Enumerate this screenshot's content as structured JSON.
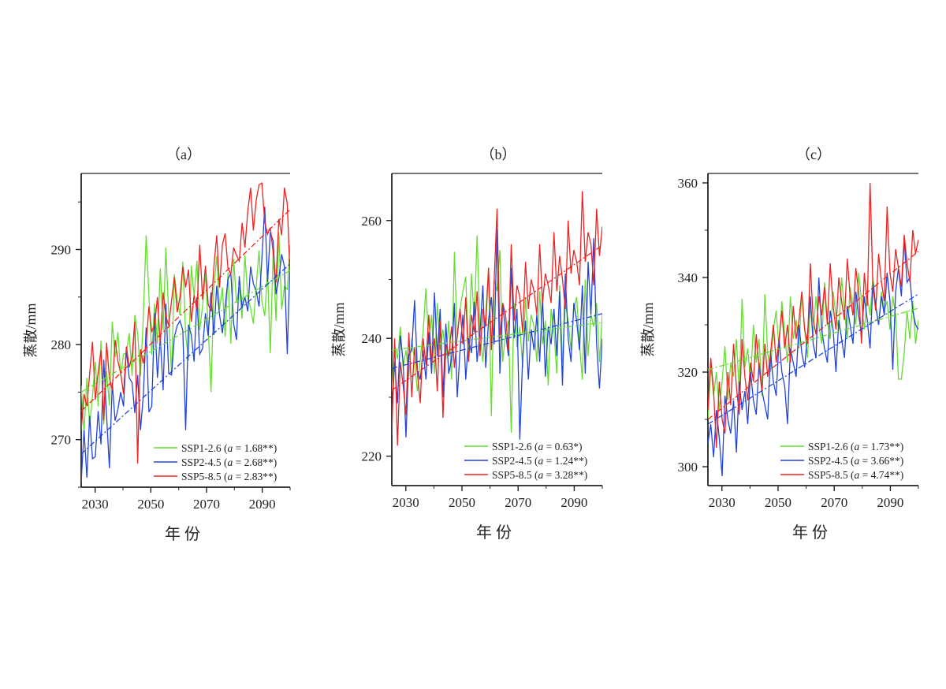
{
  "figure": {
    "xlabel": "年 份",
    "ylabel": "蒸散/mm"
  },
  "chart_data": [
    {
      "type": "line",
      "panel": "(a)",
      "title": "（a）",
      "xlabel": "年 份",
      "ylabel": "蒸散/mm",
      "xlim": [
        2025,
        2100
      ],
      "ylim": [
        265,
        298
      ],
      "xticks": [
        2030,
        2050,
        2070,
        2090
      ],
      "xtick_labels": [
        "2030",
        "2050",
        "2070",
        "2090"
      ],
      "yticks": [
        270,
        280,
        290
      ],
      "ytick_labels": [
        "270",
        "280",
        "290"
      ],
      "legend_position": "bottom-right",
      "series": [
        {
          "name": "SSP1-2.6",
          "color": "#66dd33",
          "legend_label": "SSP1-2.6 (a = 1.68**)",
          "label_prefix": "SSP1-2.6 (",
          "coef_symbol": "a",
          "coef_rest": " = 1.68**)",
          "slope_per_decade": 1.68,
          "trend": [
            275.0,
            287.8
          ],
          "values": [
            275.7,
            270.7,
            276.5,
            271.4,
            274.6,
            278.2,
            273.5,
            280.4,
            271.6,
            277.2,
            273.6,
            282.4,
            278.7,
            281.3,
            276.7,
            279.0,
            279.1,
            281.2,
            276.7,
            283.1,
            281.2,
            276.7,
            282.9,
            291.5,
            285.2,
            278.9,
            284.3,
            280.1,
            288.0,
            281.5,
            290.2,
            283.0,
            276.9,
            287.4,
            284.7,
            283.1,
            288.7,
            281.1,
            278.3,
            288.3,
            285.1,
            288.8,
            281.5,
            284.1,
            287.5,
            281.8,
            275.0,
            286.0,
            289.3,
            283.7,
            286.0,
            280.8,
            287.6,
            280.1,
            289.0,
            284.4,
            286.1,
            282.7,
            289.4,
            285.0,
            283.8,
            282.2,
            286.1,
            289.9,
            284.6,
            283.0,
            287.7,
            279.1,
            289.8,
            282.5,
            291.8,
            283.7,
            286.1,
            285.8,
            290.5
          ]
        },
        {
          "name": "SSP2-4.5",
          "color": "#2244dd",
          "legend_label": "SSP2-4.5 (a = 2.68**)",
          "label_prefix": "SSP2-4.5 (",
          "coef_symbol": "a",
          "coef_rest": " = 2.68**)",
          "slope_per_decade": 2.68,
          "trend": [
            268.5,
            288.5
          ],
          "values": [
            265.5,
            271.0,
            266.0,
            272.5,
            268.0,
            268.2,
            273.0,
            269.5,
            278.4,
            272.5,
            267.0,
            276.0,
            272.0,
            273.2,
            275.0,
            273.5,
            279.5,
            276.5,
            276.0,
            272.8,
            276.8,
            271.0,
            274.6,
            281.8,
            272.9,
            273.5,
            283.3,
            276.5,
            280.8,
            275.2,
            284.3,
            277.0,
            276.8,
            280.8,
            282.0,
            282.5,
            281.5,
            271.0,
            282.1,
            281.0,
            278.2,
            285.0,
            279.0,
            279.6,
            283.3,
            280.9,
            285.5,
            281.0,
            286.2,
            283.1,
            281.2,
            284.0,
            286.9,
            287.5,
            282.2,
            280.5,
            287.2,
            283.9,
            285.0,
            283.5,
            288.2,
            286.4,
            285.6,
            284.0,
            289.0,
            294.5,
            286.6,
            291.8,
            290.9,
            285.3,
            287.0,
            289.5,
            288.2,
            279.0,
            289.0
          ]
        },
        {
          "name": "SSP5-8.5",
          "color": "#ee2222",
          "legend_label": "SSP5-8.5 (a = 2.83**)",
          "label_prefix": "SSP5-8.5 (",
          "coef_symbol": "a",
          "coef_rest": " = 2.83**)",
          "slope_per_decade": 2.83,
          "trend": [
            273.0,
            294.2
          ],
          "values": [
            271.0,
            274.8,
            273.5,
            276.9,
            280.3,
            274.2,
            277.1,
            279.4,
            272.0,
            280.2,
            276.5,
            275.2,
            280.5,
            278.2,
            277.0,
            274.8,
            279.8,
            277.6,
            278.8,
            282.4,
            267.5,
            279.5,
            278.0,
            280.0,
            284.0,
            281.4,
            282.0,
            285.0,
            280.0,
            285.5,
            283.0,
            282.0,
            284.6,
            287.1,
            283.4,
            285.0,
            288.2,
            286.0,
            287.9,
            282.4,
            285.2,
            283.6,
            290.5,
            284.7,
            288.3,
            284.2,
            283.5,
            288.2,
            291.5,
            286.0,
            290.5,
            291.7,
            288.0,
            287.4,
            290.2,
            289.4,
            288.8,
            292.8,
            290.2,
            294.0,
            296.5,
            292.0,
            295.2,
            296.8,
            297.0,
            292.9,
            291.6,
            292.3,
            289.7,
            286.5,
            293.2,
            291.5,
            296.5,
            294.8,
            287.0
          ]
        }
      ]
    },
    {
      "type": "line",
      "panel": "(b)",
      "title": "（b）",
      "xlabel": "年 份",
      "ylabel": "蒸散/mm",
      "xlim": [
        2025,
        2100
      ],
      "ylim": [
        215,
        268
      ],
      "xticks": [
        2030,
        2050,
        2070,
        2090
      ],
      "xtick_labels": [
        "2030",
        "2050",
        "2070",
        "2090"
      ],
      "yticks": [
        220,
        240,
        260
      ],
      "ytick_labels": [
        "220",
        "240",
        "260"
      ],
      "legend_position": "bottom-right",
      "series": [
        {
          "name": "SSP1-2.6",
          "color": "#66dd33",
          "legend_label": "SSP1-2.6 (a = 0.63*)",
          "label_prefix": "SSP1-2.6 (",
          "coef_symbol": "a",
          "coef_rest": " = 0.63*)",
          "slope_per_decade": 0.63,
          "trend": [
            238.0,
            242.7
          ],
          "values": [
            231.0,
            239.0,
            236.5,
            242.0,
            235.0,
            238.0,
            233.5,
            240.0,
            236.0,
            231.0,
            236.5,
            241.0,
            248.5,
            239.0,
            244.0,
            234.0,
            246.0,
            238.0,
            241.5,
            236.5,
            243.0,
            233.0,
            254.7,
            240.0,
            245.0,
            248.0,
            250.5,
            237.0,
            251.0,
            243.0,
            257.5,
            241.0,
            236.0,
            244.0,
            252.0,
            226.8,
            250.0,
            248.0,
            255.0,
            236.0,
            241.0,
            243.0,
            224.0,
            246.0,
            238.5,
            242.0,
            235.0,
            247.0,
            239.5,
            244.0,
            242.0,
            236.0,
            248.0,
            239.0,
            243.0,
            232.0,
            245.0,
            241.0,
            234.0,
            249.0,
            236.0,
            246.0,
            243.0,
            238.0,
            245.0,
            247.0,
            239.0,
            233.0,
            250.0,
            237.0,
            244.0,
            242.0,
            246.0,
            236.0,
            244.0
          ]
        },
        {
          "name": "SSP2-4.5",
          "color": "#2244dd",
          "legend_label": "SSP2-4.5 (a = 1.24**)",
          "label_prefix": "SSP2-4.5 (",
          "coef_symbol": "a",
          "coef_rest": " = 1.24**)",
          "slope_per_decade": 1.24,
          "trend": [
            234.9,
            244.2
          ],
          "values": [
            226.5,
            236.0,
            229.0,
            240.5,
            236.0,
            223.2,
            237.2,
            238.0,
            246.5,
            234.5,
            233.0,
            238.0,
            233.0,
            241.0,
            234.0,
            247.8,
            237.0,
            245.0,
            230.0,
            242.5,
            234.0,
            236.5,
            246.0,
            230.0,
            238.0,
            244.0,
            233.0,
            240.0,
            237.5,
            246.2,
            236.0,
            241.0,
            249.0,
            235.0,
            243.0,
            247.0,
            239.0,
            258.5,
            234.0,
            246.0,
            241.0,
            237.0,
            252.0,
            240.0,
            245.0,
            222.8,
            237.0,
            243.0,
            233.0,
            241.5,
            238.0,
            244.0,
            236.0,
            247.0,
            233.5,
            242.0,
            239.0,
            245.0,
            237.0,
            248.0,
            232.0,
            251.0,
            240.0,
            236.0,
            246.0,
            243.0,
            238.0,
            249.0,
            234.0,
            253.0,
            244.0,
            257.0,
            239.0,
            231.5,
            240.0
          ]
        },
        {
          "name": "SSP5-8.5",
          "color": "#ee2222",
          "legend_label": "SSP5-8.5 (a = 3.28**)",
          "label_prefix": "SSP5-8.5 (",
          "coef_symbol": "a",
          "coef_rest": " = 3.28**)",
          "slope_per_decade": 3.28,
          "trend": [
            231.2,
            255.8
          ],
          "values": [
            223.5,
            240.0,
            221.8,
            236.0,
            232.0,
            227.0,
            241.0,
            230.0,
            238.5,
            234.0,
            229.0,
            240.0,
            235.5,
            244.0,
            236.0,
            240.0,
            231.0,
            243.0,
            226.5,
            239.0,
            237.0,
            242.0,
            235.0,
            240.5,
            245.0,
            239.0,
            247.0,
            236.0,
            244.0,
            241.0,
            248.0,
            237.0,
            245.0,
            242.0,
            252.0,
            238.0,
            250.0,
            262.0,
            240.0,
            246.0,
            244.0,
            238.0,
            256.0,
            243.0,
            249.0,
            247.0,
            241.0,
            253.0,
            245.0,
            250.0,
            248.0,
            244.0,
            256.0,
            246.0,
            251.0,
            249.0,
            246.0,
            258.0,
            248.0,
            254.0,
            250.0,
            245.0,
            260.0,
            251.0,
            255.0,
            253.0,
            249.0,
            265.0,
            253.0,
            258.0,
            256.0,
            249.0,
            262.0,
            254.0,
            259.0
          ]
        }
      ]
    },
    {
      "type": "line",
      "panel": "(c)",
      "title": "（c）",
      "xlabel": "年 份",
      "ylabel": "蒸散/mm",
      "xlim": [
        2025,
        2100
      ],
      "ylim": [
        296,
        362
      ],
      "xticks": [
        2030,
        2050,
        2070,
        2090
      ],
      "xtick_labels": [
        "2030",
        "2050",
        "2070",
        "2090"
      ],
      "yticks": [
        300,
        320,
        340,
        360
      ],
      "ytick_labels": [
        "300",
        "320",
        "340",
        "360"
      ],
      "legend_position": "bottom-right",
      "series": [
        {
          "name": "SSP1-2.6",
          "color": "#66dd33",
          "legend_label": "SSP1-2.6 (a = 1.73**)",
          "label_prefix": "SSP1-2.6 (",
          "coef_symbol": "a",
          "coef_rest": " = 1.73**)",
          "slope_per_decade": 1.73,
          "trend": [
            320.5,
            333.5
          ],
          "values": [
            310.0,
            321.5,
            315.0,
            320.0,
            312.0,
            318.0,
            325.5,
            314.0,
            322.0,
            319.0,
            327.0,
            316.0,
            335.5,
            321.0,
            325.0,
            318.0,
            330.0,
            322.0,
            327.0,
            315.0,
            336.5,
            324.0,
            320.0,
            329.0,
            333.0,
            325.0,
            335.0,
            328.0,
            322.0,
            336.0,
            327.0,
            331.0,
            325.0,
            337.0,
            329.0,
            323.0,
            334.0,
            328.0,
            336.0,
            330.0,
            326.0,
            339.0,
            331.0,
            327.0,
            337.0,
            332.0,
            329.0,
            340.0,
            333.0,
            327.0,
            338.0,
            334.0,
            330.0,
            341.0,
            335.0,
            329.0,
            336.0,
            332.0,
            340.0,
            334.0,
            330.0,
            337.0,
            333.0,
            335.0,
            329.0,
            336.0,
            332.0,
            318.5,
            318.5,
            324.0,
            333.0,
            327.0,
            335.0,
            326.0,
            331.0
          ]
        },
        {
          "name": "SSP2-4.5",
          "color": "#2244dd",
          "legend_label": "SSP2-4.5 (a = 3.66**)",
          "label_prefix": "SSP2-4.5 (",
          "coef_symbol": "a",
          "coef_rest": " = 3.66**)",
          "slope_per_decade": 3.66,
          "trend": [
            309.0,
            336.5
          ],
          "values": [
            305.0,
            309.0,
            302.0,
            312.0,
            306.0,
            298.0,
            315.0,
            310.0,
            307.0,
            314.0,
            303.0,
            318.0,
            312.0,
            316.0,
            309.0,
            320.0,
            314.0,
            311.0,
            322.0,
            316.0,
            313.0,
            310.0,
            324.0,
            318.0,
            315.0,
            327.0,
            320.0,
            317.0,
            309.0,
            325.0,
            322.0,
            319.0,
            330.0,
            324.0,
            321.0,
            328.0,
            336.0,
            326.0,
            323.0,
            340.0,
            329.0,
            325.0,
            322.0,
            333.0,
            329.0,
            320.0,
            331.0,
            327.0,
            323.0,
            334.0,
            330.0,
            326.0,
            337.0,
            332.0,
            328.0,
            336.0,
            331.0,
            325.0,
            339.0,
            334.0,
            330.0,
            336.0,
            332.0,
            341.0,
            335.0,
            320.5,
            337.0,
            342.0,
            336.0,
            348.0,
            339.0,
            340.0,
            333.0,
            330.0,
            329.0
          ]
        },
        {
          "name": "SSP5-8.5",
          "color": "#ee2222",
          "legend_label": "SSP5-8.5 (a = 4.74**)",
          "label_prefix": "SSP5-8.5 (",
          "coef_symbol": "a",
          "coef_rest": " = 4.74**)",
          "slope_per_decade": 4.74,
          "trend": [
            310.0,
            345.5
          ],
          "values": [
            312.0,
            323.0,
            316.0,
            304.0,
            318.0,
            310.0,
            307.0,
            320.0,
            313.0,
            326.0,
            317.0,
            311.0,
            327.0,
            319.0,
            314.0,
            322.0,
            318.0,
            328.0,
            321.0,
            316.0,
            326.0,
            319.0,
            324.0,
            330.0,
            322.0,
            327.0,
            333.0,
            325.0,
            330.0,
            322.0,
            334.0,
            327.0,
            331.0,
            337.0,
            329.0,
            326.0,
            343.0,
            331.0,
            328.0,
            336.0,
            332.0,
            338.0,
            330.0,
            343.0,
            334.0,
            329.0,
            340.0,
            335.0,
            331.0,
            344.0,
            336.0,
            332.0,
            342.0,
            337.0,
            326.0,
            341.0,
            334.0,
            360.0,
            338.0,
            333.0,
            345.0,
            339.0,
            335.0,
            355.0,
            341.0,
            337.0,
            346.0,
            342.0,
            338.0,
            349.0,
            343.0,
            339.0,
            350.0,
            345.0,
            348.0
          ]
        }
      ]
    }
  ]
}
